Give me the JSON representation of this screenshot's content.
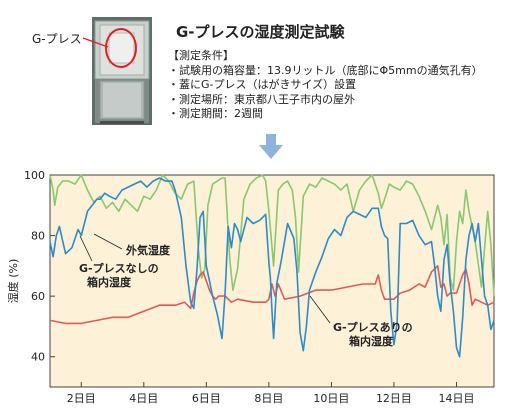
{
  "header": {
    "callout_label": "G-プレス",
    "title": "G-プレスの湿度測定試験",
    "conditions_heading": "【測定条件】",
    "conditions": [
      "試験用の箱容量：13.9リットル（底部にΦ5mmの通気孔有）",
      "蓋にG-プレス（はがきサイズ）設置",
      "測定場所：東京都八王子市内の屋外",
      "測定期間：2週間"
    ]
  },
  "colors": {
    "outside": "#8cc66e",
    "without_gpress": "#2e8ac8",
    "with_gpress": "#e05a5a",
    "plot_bg": "#fdf1d8",
    "arrow": "#8fb4dc"
  },
  "chart_data": {
    "type": "line",
    "ylabel": "湿度 (%)",
    "ylim": [
      30,
      100
    ],
    "yticks": [
      40,
      60,
      80,
      100
    ],
    "xlim": [
      1,
      15.2
    ],
    "xticks": [
      2,
      4,
      6,
      8,
      10,
      12,
      14
    ],
    "xtick_labels": [
      "2日目",
      "4日目",
      "6日目",
      "8日目",
      "10日目",
      "12日目",
      "14日目"
    ],
    "grid": false,
    "annotations": {
      "outside": "外気湿度",
      "without_line1": "G-プレスなしの",
      "without_line2": "箱内湿度",
      "with_line1": "G-プレスありの",
      "with_line2": "箱内湿度"
    },
    "series": [
      {
        "key": "outside",
        "x": [
          1.0,
          1.1,
          1.15,
          1.25,
          1.4,
          1.6,
          1.8,
          2.0,
          2.2,
          2.4,
          2.6,
          2.8,
          3.0,
          3.2,
          3.4,
          3.6,
          3.8,
          4.0,
          4.2,
          4.4,
          4.6,
          4.8,
          5.0,
          5.2,
          5.4,
          5.6,
          5.75,
          5.85,
          5.95,
          6.05,
          6.2,
          6.35,
          6.5,
          6.6,
          6.75,
          6.85,
          7.0,
          7.2,
          7.4,
          7.6,
          7.8,
          7.9,
          8.0,
          8.15,
          8.3,
          8.45,
          8.6,
          8.75,
          8.85,
          8.95,
          9.1,
          9.3,
          9.5,
          9.7,
          9.9,
          10.1,
          10.3,
          10.5,
          10.7,
          10.9,
          11.1,
          11.3,
          11.5,
          11.6,
          11.7,
          11.85,
          12.0,
          12.2,
          12.4,
          12.6,
          12.8,
          13.0,
          13.2,
          13.4,
          13.5,
          13.6,
          13.7,
          13.8,
          13.9,
          14.0,
          14.1,
          14.2,
          14.3,
          14.4,
          14.6,
          14.8,
          14.9,
          15.0,
          15.1,
          15.2
        ],
        "values": [
          100,
          95,
          90,
          96,
          98,
          98,
          97,
          100,
          95,
          91,
          93,
          89,
          91,
          88,
          92,
          90,
          88,
          93,
          92,
          95,
          100,
          98,
          94,
          92,
          97,
          98,
          75,
          66,
          69,
          90,
          97,
          98,
          99,
          99,
          72,
          62,
          69,
          92,
          97,
          99,
          100,
          98,
          88,
          70,
          95,
          97,
          98,
          95,
          86,
          68,
          93,
          97,
          96,
          99,
          98,
          97,
          95,
          97,
          88,
          95,
          98,
          100,
          94,
          89,
          92,
          97,
          96,
          95,
          98,
          97,
          93,
          88,
          82,
          90,
          86,
          77,
          87,
          66,
          62,
          78,
          88,
          84,
          95,
          88,
          78,
          63,
          76,
          88,
          77,
          60
        ]
      },
      {
        "key": "without_gpress",
        "x": [
          1.0,
          1.1,
          1.2,
          1.3,
          1.5,
          1.7,
          1.9,
          2.0,
          2.1,
          2.2,
          2.35,
          2.5,
          2.6,
          2.75,
          2.9,
          3.1,
          3.3,
          3.5,
          3.7,
          3.9,
          4.1,
          4.3,
          4.5,
          4.7,
          4.9,
          5.0,
          5.2,
          5.35,
          5.5,
          5.6,
          5.7,
          5.8,
          5.9,
          6.0,
          6.1,
          6.2,
          6.35,
          6.5,
          6.6,
          6.7,
          6.8,
          6.9,
          7.0,
          7.1,
          7.3,
          7.5,
          7.7,
          7.9,
          8.0,
          8.05,
          8.1,
          8.15,
          8.25,
          8.4,
          8.6,
          8.8,
          8.9,
          9.0,
          9.1,
          9.2,
          9.3,
          9.5,
          9.7,
          9.9,
          10.1,
          10.3,
          10.5,
          10.7,
          10.9,
          11.1,
          11.3,
          11.5,
          11.6,
          11.7,
          11.8,
          11.9,
          12.0,
          12.1,
          12.2,
          12.4,
          12.6,
          12.8,
          13.0,
          13.2,
          13.3,
          13.4,
          13.5,
          13.6,
          13.7,
          13.8,
          13.9,
          14.0,
          14.1,
          14.2,
          14.3,
          14.4,
          14.5,
          14.6,
          14.7,
          14.8,
          14.9,
          15.0,
          15.1,
          15.2
        ],
        "values": [
          78,
          73,
          80,
          83,
          74,
          76,
          82,
          80,
          84,
          88,
          90,
          92,
          92,
          94,
          93,
          92,
          95,
          96,
          97,
          98,
          96,
          98,
          99,
          98,
          98,
          95,
          86,
          70,
          58,
          56,
          69,
          86,
          88,
          70,
          65,
          60,
          54,
          46,
          61,
          83,
          76,
          84,
          82,
          78,
          86,
          84,
          85,
          87,
          71,
          66,
          55,
          46,
          64,
          72,
          84,
          79,
          68,
          48,
          42,
          50,
          62,
          68,
          73,
          79,
          82,
          80,
          86,
          88,
          87,
          86,
          89,
          89,
          83,
          80,
          79,
          55,
          44,
          51,
          84,
          84,
          85,
          80,
          77,
          78,
          70,
          60,
          55,
          72,
          77,
          64,
          55,
          43,
          40,
          53,
          72,
          80,
          84,
          78,
          84,
          72,
          60,
          57,
          49,
          52
        ]
      },
      {
        "key": "with_gpress",
        "x": [
          1.0,
          1.5,
          2.0,
          2.5,
          3.0,
          3.5,
          4.0,
          4.5,
          5.0,
          5.3,
          5.5,
          5.6,
          5.7,
          5.8,
          5.9,
          6.0,
          6.1,
          6.2,
          6.3,
          6.4,
          6.6,
          6.8,
          7.0,
          7.5,
          7.7,
          7.9,
          8.0,
          8.1,
          8.2,
          8.3,
          8.5,
          9.0,
          9.5,
          10.0,
          10.5,
          11.0,
          11.4,
          11.5,
          11.6,
          11.7,
          11.8,
          11.9,
          12.0,
          12.2,
          12.5,
          12.8,
          13.0,
          13.2,
          13.4,
          13.5,
          13.6,
          13.7,
          13.8,
          14.0,
          14.1,
          14.2,
          14.3,
          14.4,
          14.5,
          14.6,
          14.8,
          15.0,
          15.2
        ],
        "values": [
          52,
          51,
          51,
          52,
          53,
          53,
          55,
          57,
          57,
          58,
          56,
          61,
          65,
          67,
          68,
          65,
          62,
          60,
          59,
          60,
          60,
          58,
          59,
          58,
          58,
          58,
          59,
          64,
          60,
          64,
          59,
          60,
          62,
          62,
          63,
          64,
          64,
          67,
          62,
          59,
          59,
          59,
          59,
          61,
          62,
          64,
          63,
          68,
          70,
          63,
          64,
          60,
          61,
          61,
          64,
          67,
          69,
          64,
          57,
          59,
          58,
          57,
          58
        ]
      }
    ]
  }
}
